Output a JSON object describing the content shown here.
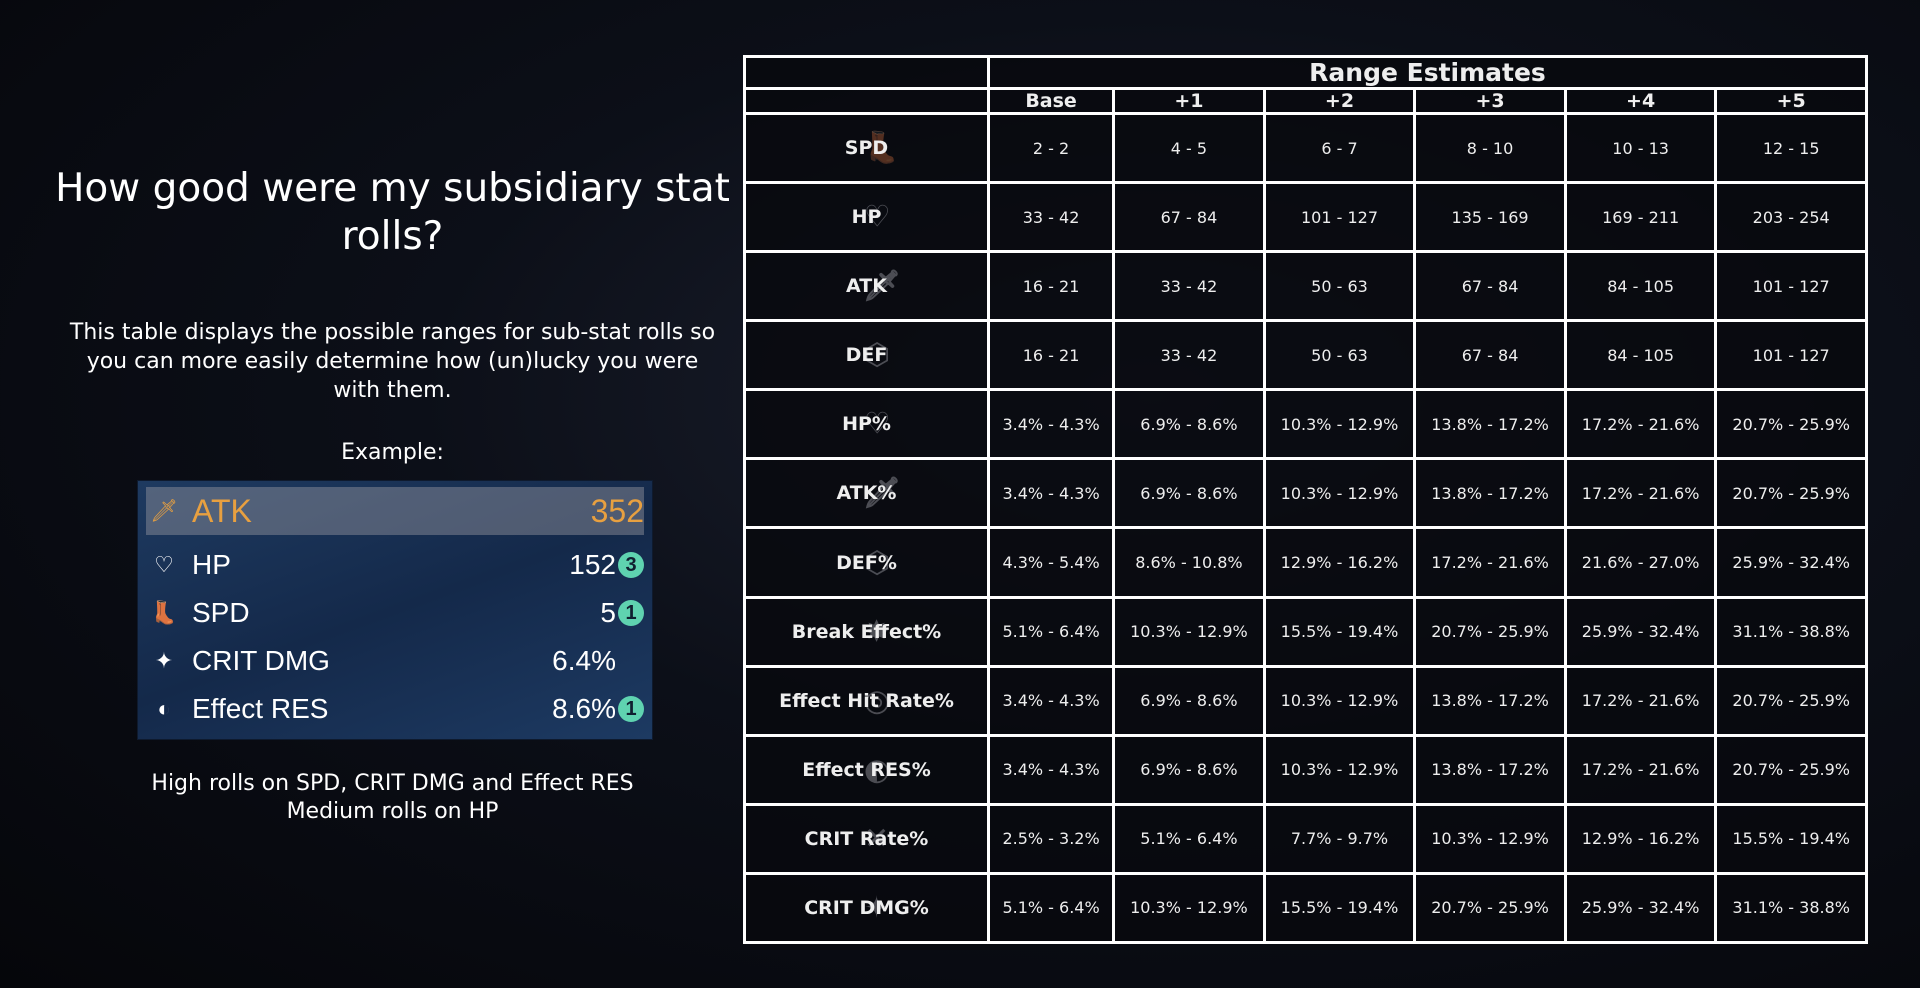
{
  "title": "How good were my subsidiary stat rolls?",
  "description": "This table displays the possible ranges for sub-stat rolls so you can more easily determine how (un)lucky you were with them.",
  "example_label": "Example:",
  "example": {
    "main": {
      "icon": "sword-icon",
      "name": "ATK",
      "value": "352",
      "color": "#e8a040"
    },
    "subs": [
      {
        "icon": "heart-icon",
        "name": "HP",
        "value": "152",
        "badge": "3"
      },
      {
        "icon": "boot-icon",
        "name": "SPD",
        "value": "5",
        "badge": "1"
      },
      {
        "icon": "crit-dmg-icon",
        "name": "CRIT DMG",
        "value": "6.4%",
        "badge": null
      },
      {
        "icon": "effect-res-icon",
        "name": "Effect RES",
        "value": "8.6%",
        "badge": "1"
      }
    ]
  },
  "summary": [
    "High rolls on SPD, CRIT DMG and Effect RES",
    "Medium rolls on HP"
  ],
  "table": {
    "title": "Range Estimates",
    "columns": [
      "Base",
      "+1",
      "+2",
      "+3",
      "+4",
      "+5"
    ],
    "rows": [
      {
        "stat": "SPD",
        "icon": "boot-icon",
        "values": [
          "2 - 2",
          "4 - 5",
          "6 - 7",
          "8 - 10",
          "10 - 13",
          "12 - 15"
        ]
      },
      {
        "stat": "HP",
        "icon": "heart-icon",
        "values": [
          "33 - 42",
          "67 - 84",
          "101 - 127",
          "135 - 169",
          "169 - 211",
          "203 - 254"
        ]
      },
      {
        "stat": "ATK",
        "icon": "sword-icon",
        "values": [
          "16 - 21",
          "33 - 42",
          "50 - 63",
          "67 - 84",
          "84 - 105",
          "101 - 127"
        ]
      },
      {
        "stat": "DEF",
        "icon": "shield-icon",
        "values": [
          "16 - 21",
          "33 - 42",
          "50 - 63",
          "67 - 84",
          "84 - 105",
          "101 - 127"
        ]
      },
      {
        "stat": "HP%",
        "icon": "heart-icon",
        "values": [
          "3.4% - 4.3%",
          "6.9% - 8.6%",
          "10.3% - 12.9%",
          "13.8% - 17.2%",
          "17.2% - 21.6%",
          "20.7% - 25.9%"
        ]
      },
      {
        "stat": "ATK%",
        "icon": "sword-icon",
        "values": [
          "3.4% - 4.3%",
          "6.9% - 8.6%",
          "10.3% - 12.9%",
          "13.8% - 17.2%",
          "17.2% - 21.6%",
          "20.7% - 25.9%"
        ]
      },
      {
        "stat": "DEF%",
        "icon": "shield-icon",
        "values": [
          "4.3% - 5.4%",
          "8.6% - 10.8%",
          "12.9% - 16.2%",
          "17.2% - 21.6%",
          "21.6% - 27.0%",
          "25.9% - 32.4%"
        ]
      },
      {
        "stat": "Break Effect%",
        "icon": "break-effect-icon",
        "values": [
          "5.1% - 6.4%",
          "10.3% - 12.9%",
          "15.5% - 19.4%",
          "20.7% - 25.9%",
          "25.9% - 32.4%",
          "31.1% - 38.8%"
        ]
      },
      {
        "stat": "Effect Hit Rate%",
        "icon": "effect-hit-icon",
        "values": [
          "3.4% - 4.3%",
          "6.9% - 8.6%",
          "10.3% - 12.9%",
          "13.8% - 17.2%",
          "17.2% - 21.6%",
          "20.7% - 25.9%"
        ]
      },
      {
        "stat": "Effect RES%",
        "icon": "effect-res-icon",
        "values": [
          "3.4% - 4.3%",
          "6.9% - 8.6%",
          "10.3% - 12.9%",
          "13.8% - 17.2%",
          "17.2% - 21.6%",
          "20.7% - 25.9%"
        ]
      },
      {
        "stat": "CRIT Rate%",
        "icon": "crit-rate-icon",
        "values": [
          "2.5% - 3.2%",
          "5.1% - 6.4%",
          "7.7% - 9.7%",
          "10.3% - 12.9%",
          "12.9% - 16.2%",
          "15.5% - 19.4%"
        ]
      },
      {
        "stat": "CRIT DMG%",
        "icon": "crit-dmg-icon",
        "values": [
          "5.1% - 6.4%",
          "10.3% - 12.9%",
          "15.5% - 19.4%",
          "20.7% - 25.9%",
          "25.9% - 32.4%",
          "31.1% - 38.8%"
        ]
      }
    ]
  }
}
